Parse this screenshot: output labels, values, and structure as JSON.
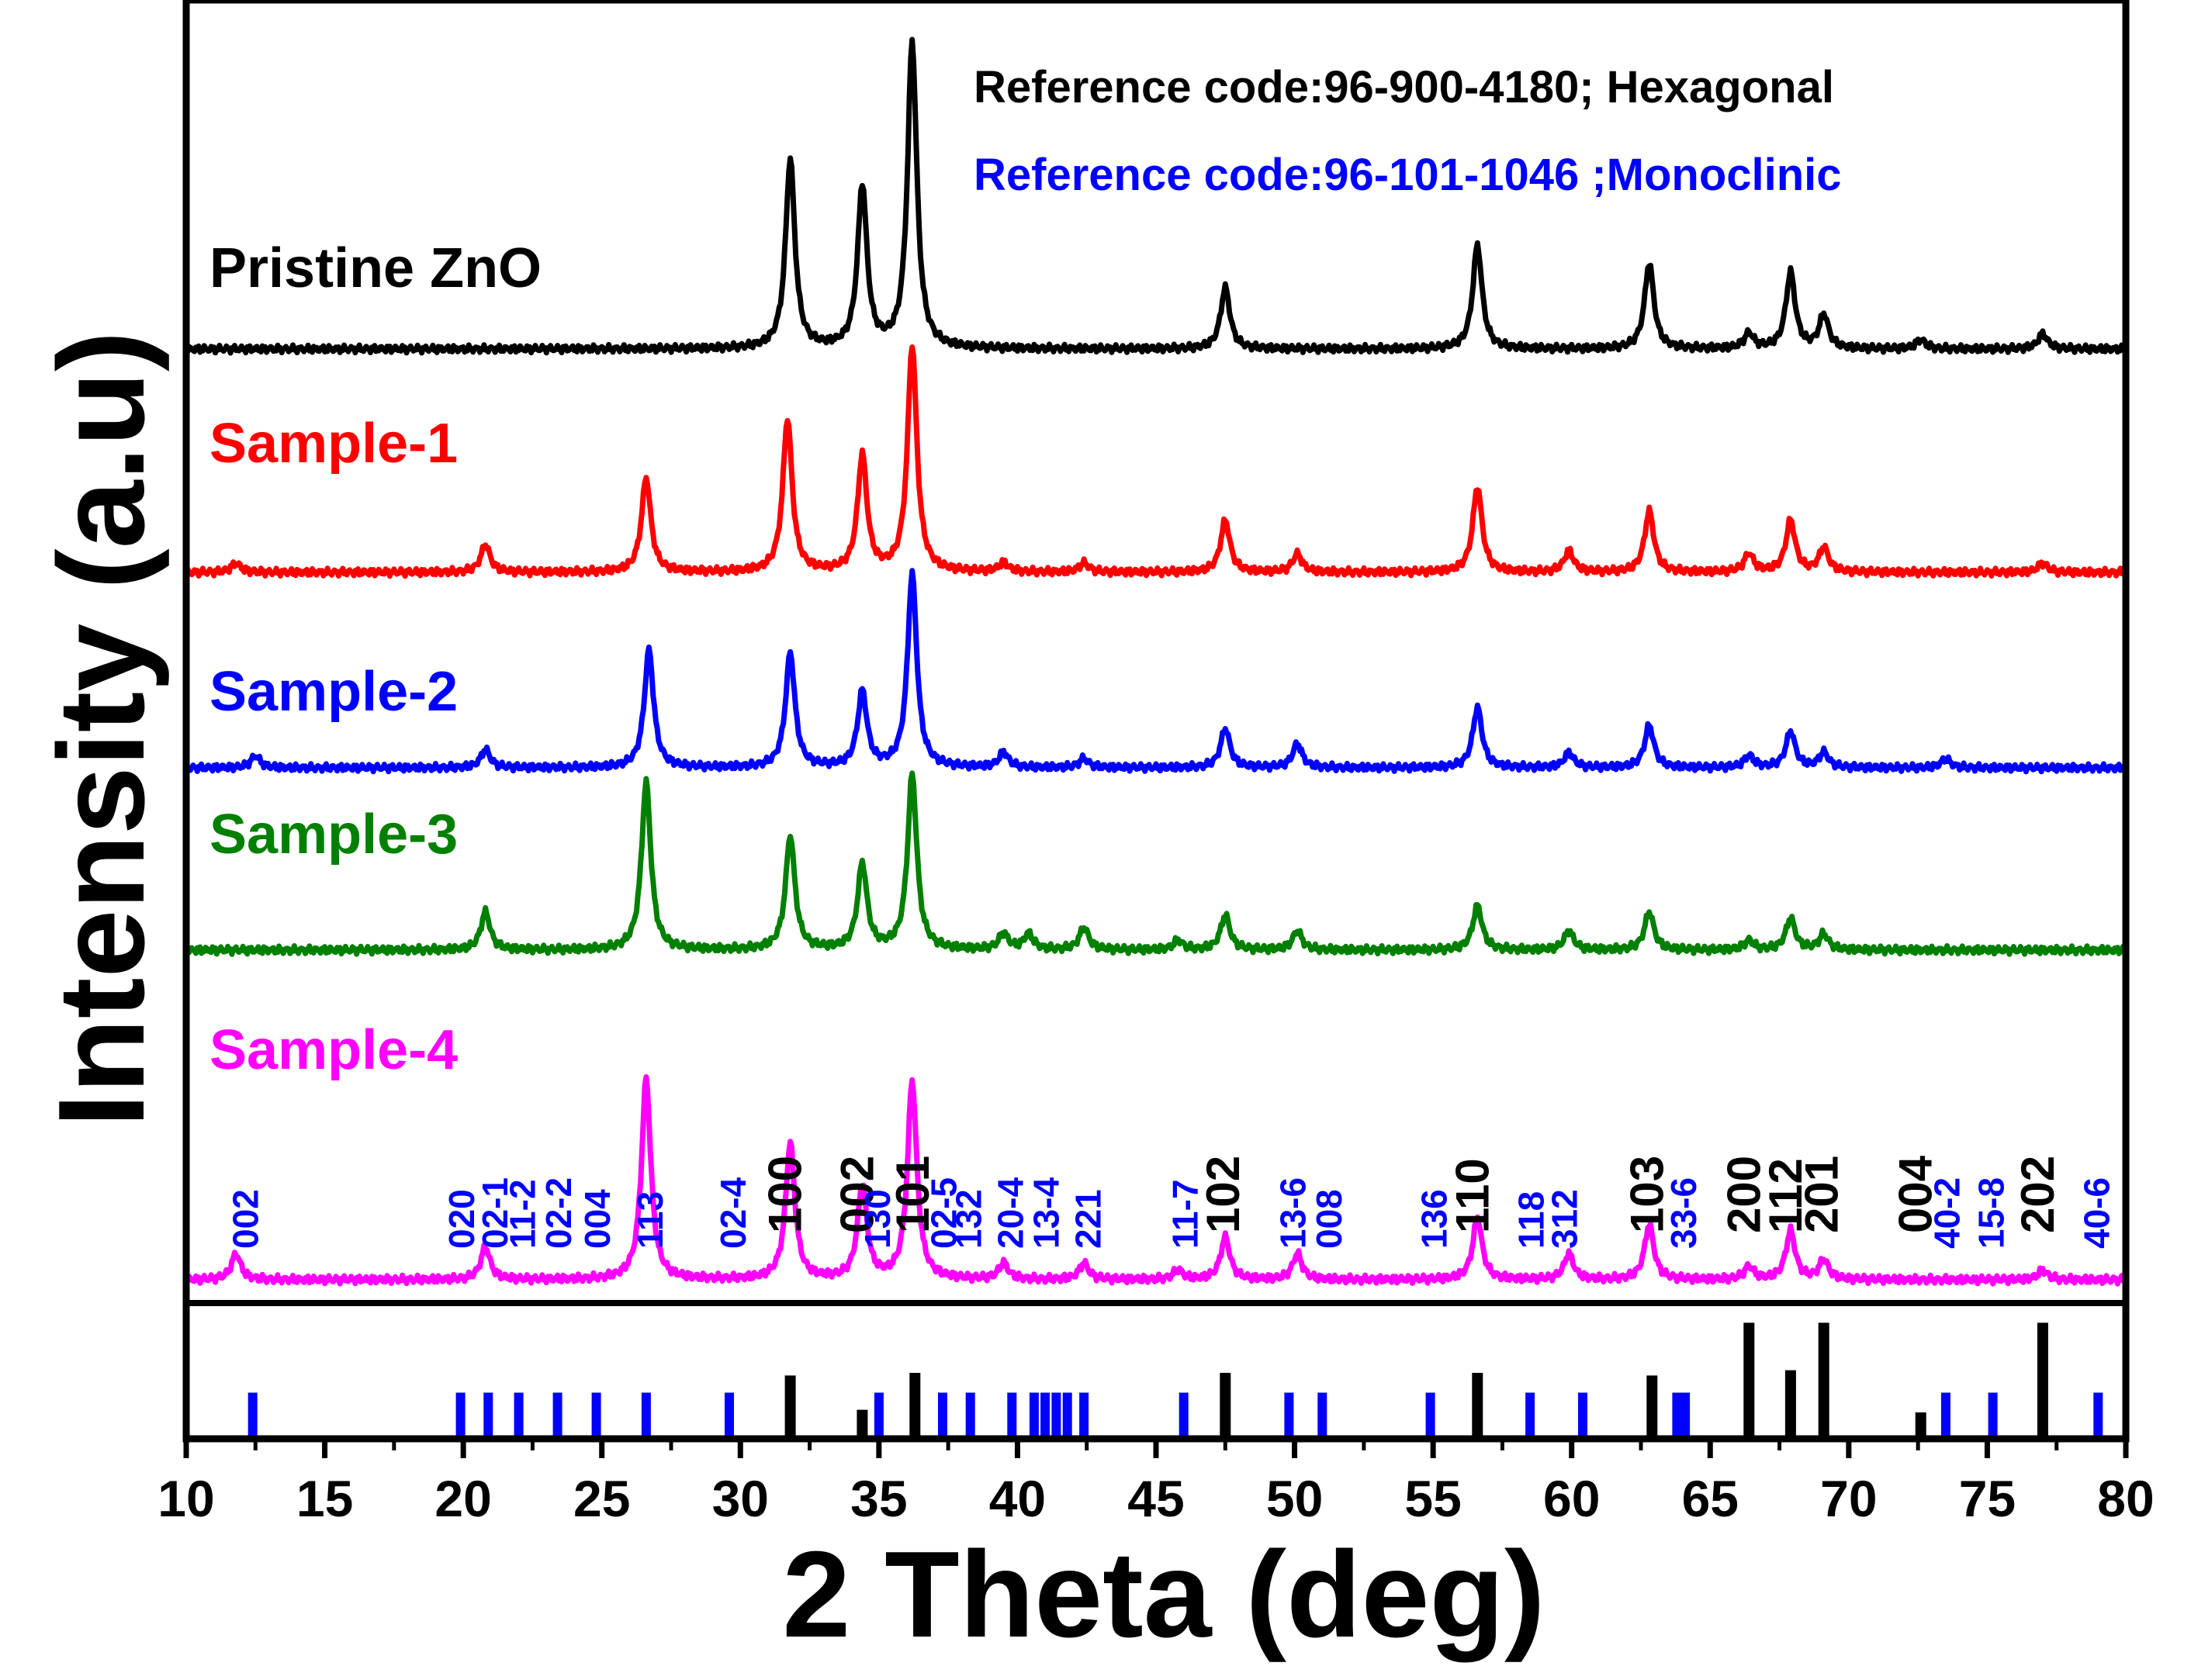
{
  "chart_data": {
    "type": "line",
    "xlabel": "2 Theta (deg)",
    "ylabel": "Intensity (a.u)",
    "xlim": [
      10,
      80
    ],
    "x_ticks": [
      "10",
      "15",
      "20",
      "25",
      "30",
      "35",
      "40",
      "45",
      "50",
      "55",
      "60",
      "65",
      "70",
      "75",
      "80"
    ],
    "reference_labels": [
      {
        "text": "Reference code:96-900-4180; Hexagonal",
        "color": "#000000"
      },
      {
        "text": "Reference code:96-101-1046 ;Monoclinic",
        "color": "#0000ff"
      }
    ],
    "series": [
      {
        "name": "Pristine ZnO",
        "color": "#000000",
        "peaks": [
          [
            31.8,
            0.62
          ],
          [
            34.4,
            0.53
          ],
          [
            36.2,
            1.0
          ],
          [
            47.5,
            0.2
          ],
          [
            56.6,
            0.34
          ],
          [
            62.8,
            0.28
          ],
          [
            66.4,
            0.05
          ],
          [
            67.9,
            0.25
          ],
          [
            69.1,
            0.11
          ],
          [
            72.6,
            0.03
          ],
          [
            77.0,
            0.05
          ]
        ]
      },
      {
        "name": "Sample-1",
        "color": "#ff0000",
        "peaks": [
          [
            11.8,
            0.03
          ],
          [
            20.8,
            0.09
          ],
          [
            26.6,
            0.31
          ],
          [
            31.7,
            0.5
          ],
          [
            34.4,
            0.38
          ],
          [
            36.2,
            0.74
          ],
          [
            39.5,
            0.03
          ],
          [
            42.4,
            0.03
          ],
          [
            47.5,
            0.17
          ],
          [
            50.1,
            0.06
          ],
          [
            56.6,
            0.28
          ],
          [
            59.9,
            0.07
          ],
          [
            62.8,
            0.2
          ],
          [
            66.4,
            0.06
          ],
          [
            67.9,
            0.17
          ],
          [
            69.1,
            0.08
          ],
          [
            77.0,
            0.03
          ]
        ]
      },
      {
        "name": "Sample-2",
        "color": "#0000ff",
        "peaks": [
          [
            12.5,
            0.04
          ],
          [
            20.8,
            0.06
          ],
          [
            26.7,
            0.39
          ],
          [
            31.8,
            0.38
          ],
          [
            34.4,
            0.25
          ],
          [
            36.2,
            0.64
          ],
          [
            39.5,
            0.05
          ],
          [
            42.4,
            0.03
          ],
          [
            47.5,
            0.13
          ],
          [
            50.1,
            0.08
          ],
          [
            56.6,
            0.2
          ],
          [
            59.9,
            0.05
          ],
          [
            62.8,
            0.14
          ],
          [
            66.4,
            0.04
          ],
          [
            67.9,
            0.12
          ],
          [
            69.1,
            0.05
          ],
          [
            73.5,
            0.03
          ]
        ]
      },
      {
        "name": "Sample-3",
        "color": "#008000",
        "peaks": [
          [
            20.8,
            0.12
          ],
          [
            26.6,
            0.53
          ],
          [
            31.8,
            0.36
          ],
          [
            34.4,
            0.27
          ],
          [
            36.2,
            0.55
          ],
          [
            39.5,
            0.05
          ],
          [
            40.4,
            0.05
          ],
          [
            42.4,
            0.07
          ],
          [
            45.8,
            0.03
          ],
          [
            47.5,
            0.11
          ],
          [
            50.1,
            0.06
          ],
          [
            56.6,
            0.14
          ],
          [
            59.9,
            0.06
          ],
          [
            62.8,
            0.12
          ],
          [
            66.4,
            0.03
          ],
          [
            67.9,
            0.1
          ],
          [
            69.1,
            0.05
          ]
        ]
      },
      {
        "name": "Sample-4",
        "color": "#ff00ff",
        "peaks": [
          [
            11.8,
            0.08
          ],
          [
            20.8,
            0.1
          ],
          [
            26.6,
            0.62
          ],
          [
            31.8,
            0.42
          ],
          [
            34.4,
            0.29
          ],
          [
            36.2,
            0.61
          ],
          [
            39.5,
            0.05
          ],
          [
            42.4,
            0.05
          ],
          [
            45.8,
            0.03
          ],
          [
            47.5,
            0.13
          ],
          [
            50.1,
            0.08
          ],
          [
            56.6,
            0.19
          ],
          [
            59.9,
            0.08
          ],
          [
            62.8,
            0.17
          ],
          [
            66.4,
            0.04
          ],
          [
            67.9,
            0.15
          ],
          [
            69.1,
            0.06
          ],
          [
            77.0,
            0.03
          ]
        ]
      }
    ],
    "hkl_labels": [
      {
        "text": "002",
        "x": 12.2,
        "color": "#0000ff"
      },
      {
        "text": "020",
        "x": 20.0,
        "color": "#0000ff"
      },
      {
        "text": "02-1",
        "x": 21.2,
        "color": "#0000ff"
      },
      {
        "text": "11-2",
        "x": 22.2,
        "color": "#0000ff"
      },
      {
        "text": "02-2",
        "x": 23.5,
        "color": "#0000ff"
      },
      {
        "text": "004",
        "x": 24.9,
        "color": "#0000ff"
      },
      {
        "text": "113",
        "x": 26.8,
        "color": "#0000ff"
      },
      {
        "text": "02-4",
        "x": 29.8,
        "color": "#0000ff"
      },
      {
        "text": "100",
        "x": 31.8,
        "color": "#000000"
      },
      {
        "text": "002",
        "x": 34.4,
        "color": "#000000"
      },
      {
        "text": "130",
        "x": 35.0,
        "color": "#0000ff"
      },
      {
        "text": "101",
        "x": 36.4,
        "color": "#000000"
      },
      {
        "text": "02-5",
        "x": 37.4,
        "color": "#0000ff"
      },
      {
        "text": "132",
        "x": 38.3,
        "color": "#0000ff"
      },
      {
        "text": "20-4",
        "x": 39.8,
        "color": "#0000ff"
      },
      {
        "text": "13-4",
        "x": 41.1,
        "color": "#0000ff"
      },
      {
        "text": "221",
        "x": 42.6,
        "color": "#0000ff"
      },
      {
        "text": "11-7",
        "x": 46.1,
        "color": "#0000ff"
      },
      {
        "text": "102",
        "x": 47.6,
        "color": "#000000"
      },
      {
        "text": "13-6",
        "x": 50.0,
        "color": "#0000ff"
      },
      {
        "text": "008",
        "x": 51.3,
        "color": "#0000ff"
      },
      {
        "text": "136",
        "x": 55.1,
        "color": "#0000ff"
      },
      {
        "text": "110",
        "x": 56.6,
        "color": "#000000"
      },
      {
        "text": "118",
        "x": 58.6,
        "color": "#0000ff"
      },
      {
        "text": "312",
        "x": 59.8,
        "color": "#0000ff"
      },
      {
        "text": "103",
        "x": 62.9,
        "color": "#000000"
      },
      {
        "text": "33-6",
        "x": 64.1,
        "color": "#0000ff"
      },
      {
        "text": "200",
        "x": 66.4,
        "color": "#000000"
      },
      {
        "text": "112",
        "x": 67.9,
        "color": "#000000"
      },
      {
        "text": "201",
        "x": 69.2,
        "color": "#000000"
      },
      {
        "text": "004",
        "x": 72.6,
        "color": "#000000"
      },
      {
        "text": "40-2",
        "x": 73.6,
        "color": "#0000ff"
      },
      {
        "text": "15-8",
        "x": 75.2,
        "color": "#0000ff"
      },
      {
        "text": "202",
        "x": 77.0,
        "color": "#000000"
      },
      {
        "text": "40-6",
        "x": 79.0,
        "color": "#0000ff"
      }
    ],
    "reference_hexagonal": [
      [
        31.8,
        0.48
      ],
      [
        34.4,
        0.22
      ],
      [
        36.3,
        0.5
      ],
      [
        47.5,
        0.5
      ],
      [
        56.6,
        0.5
      ],
      [
        62.9,
        0.48
      ],
      [
        66.4,
        0.88
      ],
      [
        67.9,
        0.52
      ],
      [
        69.1,
        0.88
      ],
      [
        72.6,
        0.2
      ],
      [
        77.0,
        0.88
      ]
    ],
    "reference_monoclinic": [
      12.4,
      19.9,
      20.9,
      22.0,
      23.4,
      24.8,
      26.6,
      29.6,
      35.0,
      37.3,
      38.3,
      39.8,
      40.6,
      41.0,
      41.4,
      41.8,
      42.4,
      46.0,
      49.8,
      51.0,
      54.9,
      58.5,
      60.4,
      63.8,
      64.1,
      73.5,
      75.2,
      79.0
    ]
  }
}
